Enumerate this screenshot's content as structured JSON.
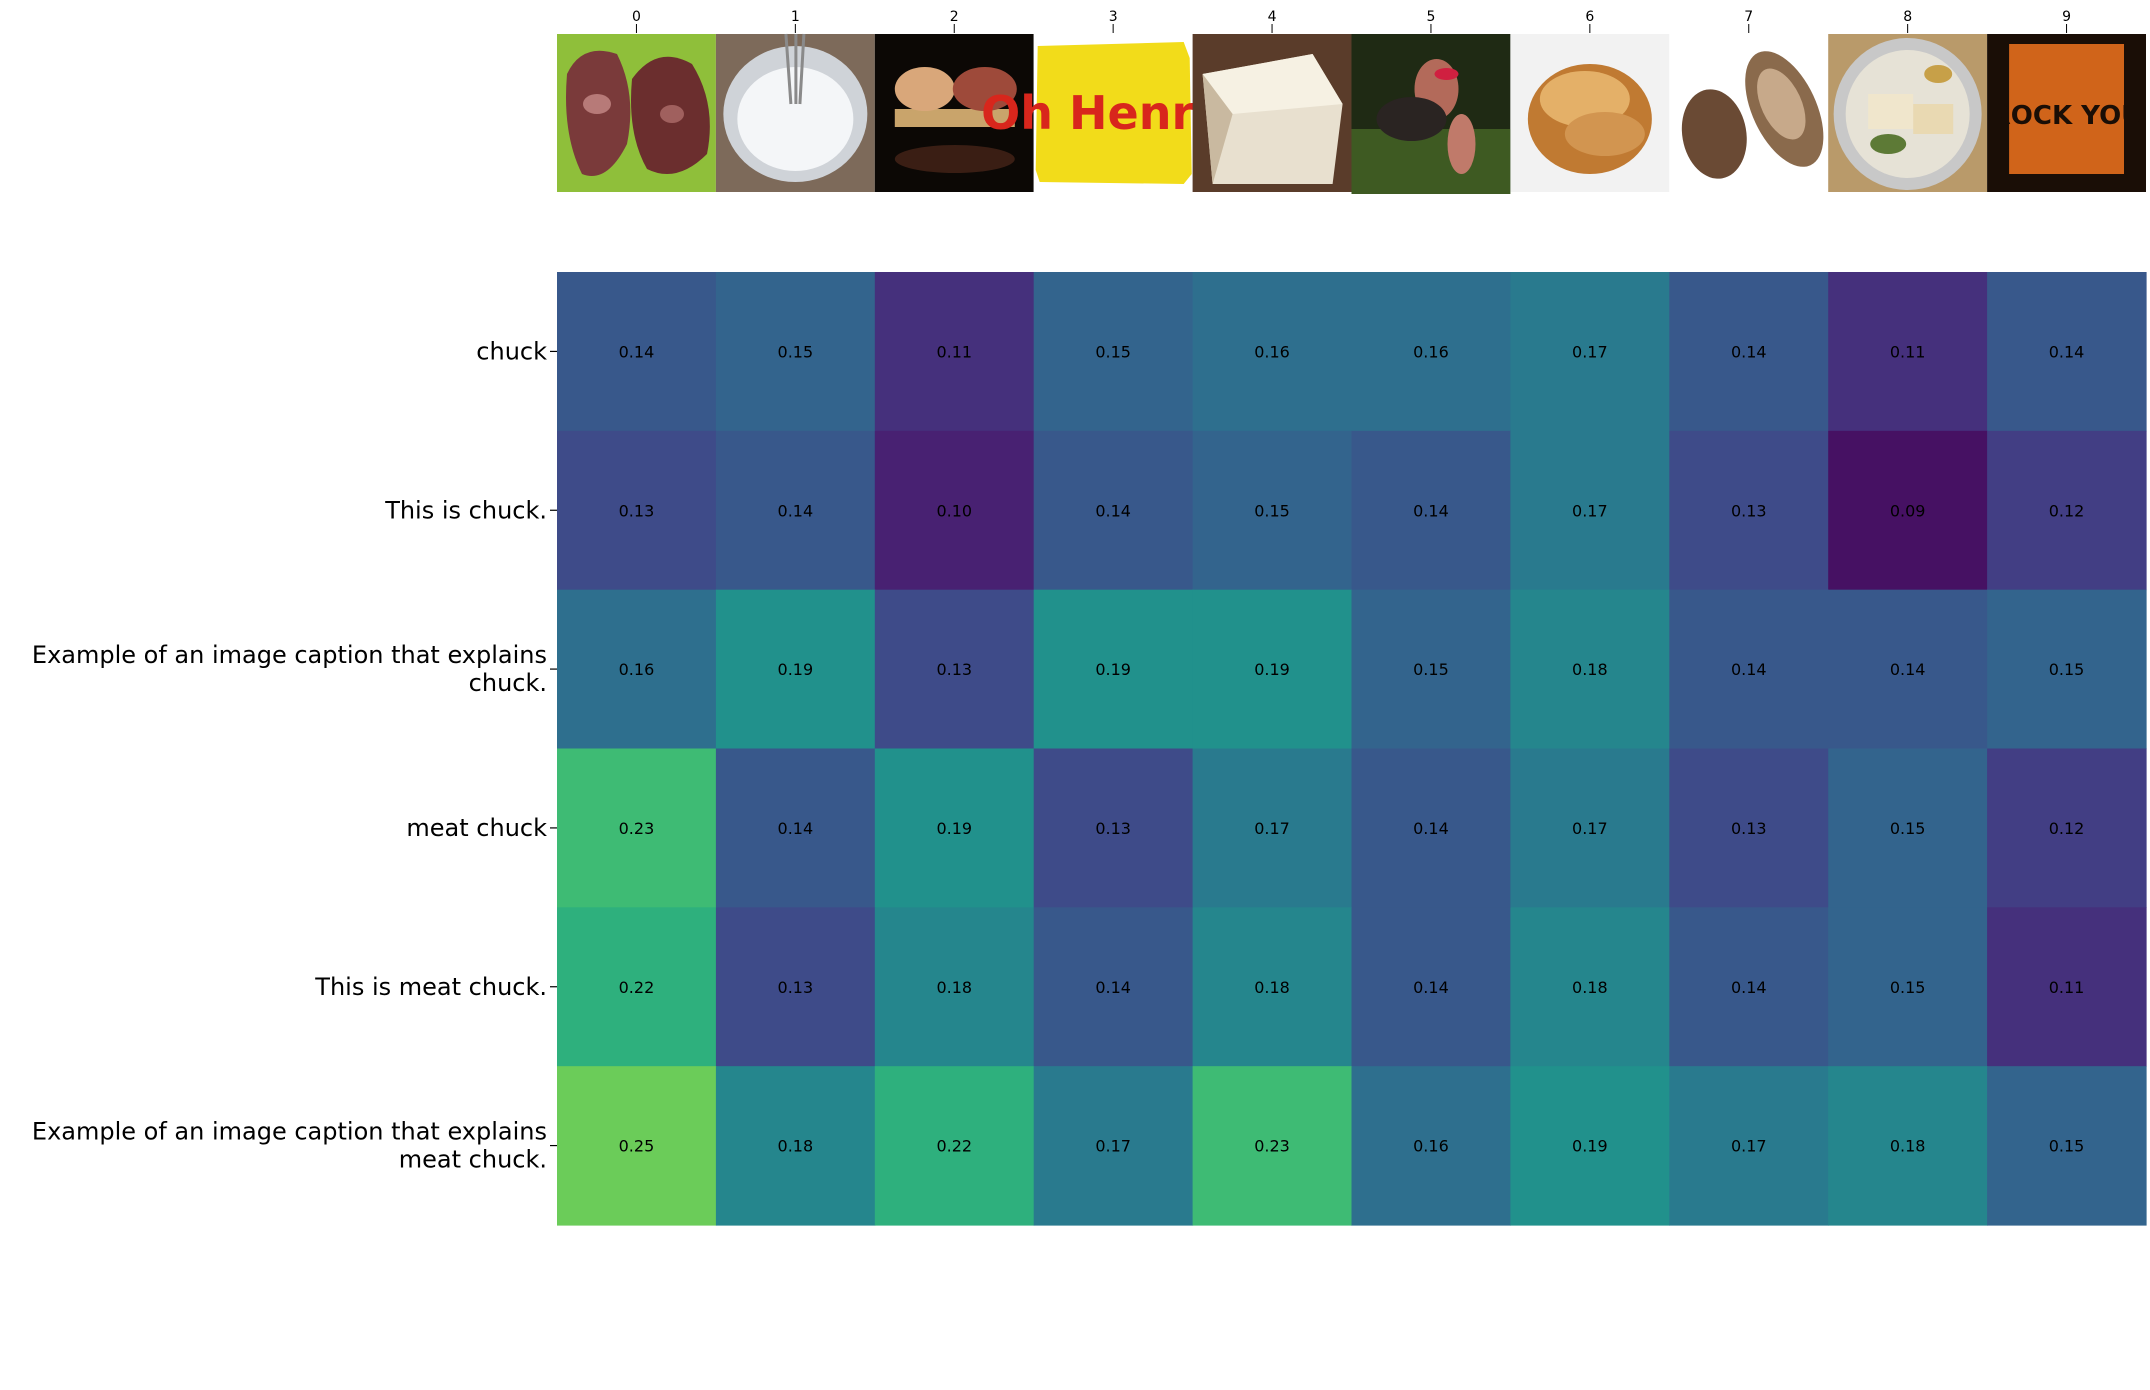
{
  "chart_data": {
    "type": "heatmap",
    "columns": [
      "0",
      "1",
      "2",
      "3",
      "4",
      "5",
      "6",
      "7",
      "8",
      "9"
    ],
    "rows": [
      "chuck",
      "This is chuck.",
      "Example of an image caption that explains\nchuck.",
      "meat chuck",
      "This is meat chuck.",
      "Example of an image caption that explains\nmeat chuck."
    ],
    "values": [
      [
        0.14,
        0.15,
        0.11,
        0.15,
        0.16,
        0.16,
        0.17,
        0.14,
        0.11,
        0.14
      ],
      [
        0.13,
        0.14,
        0.1,
        0.14,
        0.15,
        0.14,
        0.17,
        0.13,
        0.09,
        0.12
      ],
      [
        0.16,
        0.19,
        0.13,
        0.19,
        0.19,
        0.15,
        0.18,
        0.14,
        0.14,
        0.15
      ],
      [
        0.23,
        0.14,
        0.19,
        0.13,
        0.17,
        0.14,
        0.17,
        0.13,
        0.15,
        0.12
      ],
      [
        0.22,
        0.13,
        0.18,
        0.14,
        0.18,
        0.14,
        0.18,
        0.14,
        0.15,
        0.11
      ],
      [
        0.25,
        0.18,
        0.22,
        0.17,
        0.23,
        0.16,
        0.19,
        0.17,
        0.18,
        0.15
      ]
    ],
    "colormap": "viridis",
    "value_range": [
      0.08,
      0.3
    ],
    "title": "",
    "xlabel": "",
    "ylabel": "",
    "thumbnails": [
      "raw-meat-on-green-board",
      "whipped-cream-in-bowl-with-whisk",
      "meat-on-wooden-board-dark-background",
      "oh-henry-candy-bar-wrapper",
      "wedge-of-cheese",
      "woman-with-dog-at-night",
      "bread-roll",
      "two-bread-buns",
      "platter-of-food",
      "we-will-rock-you-poster"
    ],
    "thumbnail_text": {
      "3": "Oh Henry!",
      "9": "ROCK YOU"
    }
  }
}
